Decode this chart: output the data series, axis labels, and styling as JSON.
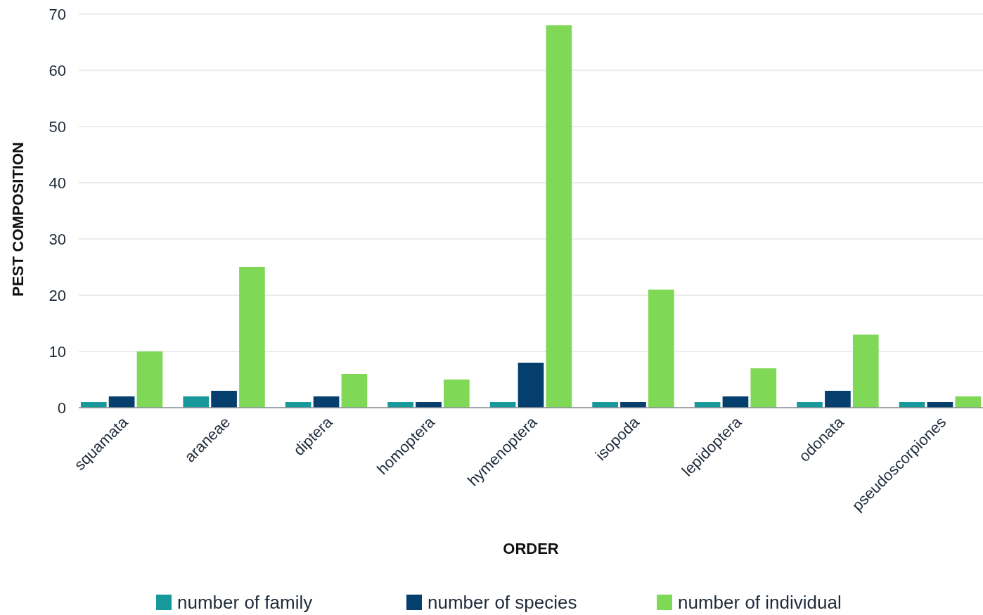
{
  "chart_data": {
    "type": "bar",
    "xlabel": "ORDER",
    "ylabel": "PEST COMPOSITION",
    "categories": [
      "squamata",
      "araneae",
      "diptera",
      "homoptera",
      "hymenoptera",
      "isopoda",
      "lepidoptera",
      "odonata",
      "pseudoscorpiones"
    ],
    "series": [
      {
        "name": "number of family",
        "color": "#17999b",
        "values": [
          1,
          2,
          1,
          1,
          1,
          1,
          1,
          1,
          1
        ]
      },
      {
        "name": "number of species",
        "color": "#053f6e",
        "values": [
          2,
          3,
          2,
          1,
          8,
          1,
          2,
          3,
          1
        ]
      },
      {
        "name": "number of individual",
        "color": "#7fd957",
        "values": [
          10,
          25,
          6,
          5,
          68,
          21,
          7,
          13,
          2
        ]
      }
    ],
    "ylim": [
      0,
      70
    ],
    "yticks": [
      0,
      10,
      20,
      30,
      40,
      50,
      60,
      70
    ],
    "grid": "y",
    "legend": "bottom"
  }
}
